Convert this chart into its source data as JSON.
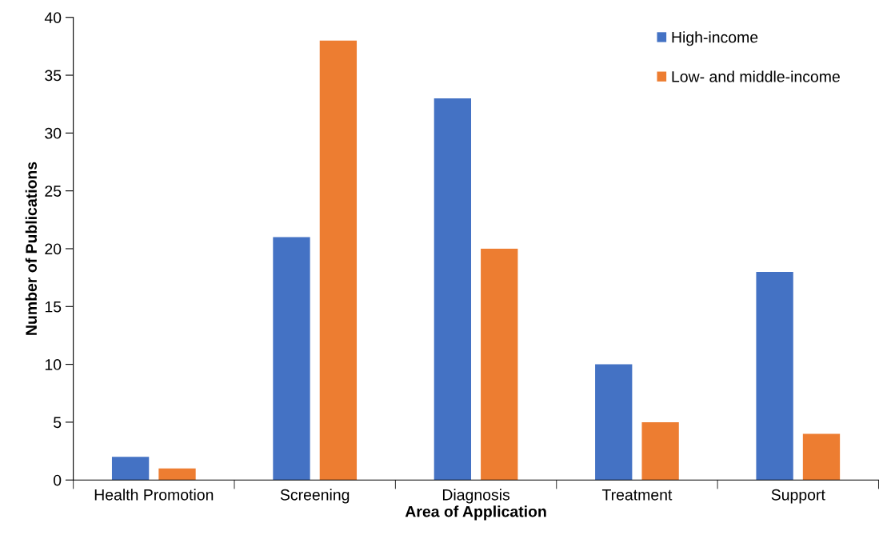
{
  "chart_data": {
    "type": "bar",
    "xlabel": "Area of Application",
    "ylabel": "Number of Publications",
    "categories": [
      "Health Promotion",
      "Screening",
      "Diagnosis",
      "Treatment",
      "Support"
    ],
    "series": [
      {
        "name": "High-income",
        "color": "#4472c4",
        "values": [
          2,
          21,
          33,
          10,
          18
        ]
      },
      {
        "name": "Low- and middle-income",
        "color": "#ed7d31",
        "values": [
          1,
          38,
          20,
          5,
          4
        ]
      }
    ],
    "ylim": [
      0,
      40
    ],
    "yticks": [
      0,
      5,
      10,
      15,
      20,
      25,
      30,
      35,
      40
    ],
    "grid": false,
    "legend": "top right"
  }
}
